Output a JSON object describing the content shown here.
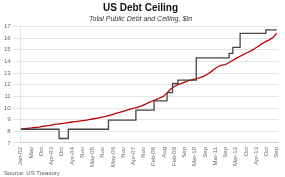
{
  "chart_data": {
    "type": "line",
    "title": "US Debt Ceiling",
    "subtitle": "Total Public Debt and Ceiling, $tn",
    "annotations": [
      "Source: US Treasury"
    ],
    "series": [
      {
        "color": "#444444",
        "x": [
          2002.0,
          2002.83,
          2002.83,
          2003.75,
          2003.75,
          2003.75,
          2004.17,
          2004.17,
          2004.42,
          2004.42,
          2006.0,
          2006.0,
          2007.25,
          2007.25,
          2008.08,
          2008.08,
          2008.67,
          2008.67,
          2008.92,
          2008.92,
          2009.17,
          2009.17,
          2010.0,
          2010.0,
          2011.5,
          2011.5,
          2011.67,
          2011.67,
          2012.0,
          2012.0,
          2013.17,
          2013.17,
          2013.67,
          2013.67
        ],
        "values": [
          8.18,
          8.18,
          8.18,
          8.18,
          7.384,
          7.384,
          7.384,
          8.18,
          8.18,
          8.18,
          8.18,
          8.965,
          8.965,
          9.815,
          9.815,
          10.615,
          10.615,
          11.315,
          11.315,
          12.104,
          12.104,
          12.394,
          12.394,
          14.294,
          14.294,
          14.694,
          14.694,
          15.194,
          15.194,
          16.394,
          16.394,
          16.699,
          16.699,
          16.699
        ]
      },
      {
        "color": "#bb0000",
        "x": [
          2002.0,
          2002.17,
          2002.33,
          2002.5,
          2002.67,
          2002.83,
          2003.0,
          2003.17,
          2003.33,
          2003.5,
          2003.67,
          2003.83,
          2004.0,
          2004.17,
          2004.33,
          2004.5,
          2004.67,
          2004.83,
          2005.0,
          2005.17,
          2005.33,
          2005.5,
          2005.67,
          2005.83,
          2006.0,
          2006.17,
          2006.33,
          2006.5,
          2006.67,
          2006.83,
          2007.0,
          2007.17,
          2007.33,
          2007.5,
          2007.67,
          2007.83,
          2008.0,
          2008.17,
          2008.33,
          2008.5,
          2008.67,
          2008.83,
          2009.0,
          2009.17,
          2009.33,
          2009.5,
          2009.67,
          2009.83,
          2010.0,
          2010.17,
          2010.33,
          2010.5,
          2010.67,
          2010.83,
          2011.0,
          2011.17,
          2011.33,
          2011.5,
          2011.67,
          2011.83,
          2012.0,
          2012.17,
          2012.33,
          2012.5,
          2012.67,
          2012.83,
          2013.0,
          2013.17,
          2013.33,
          2013.5,
          2013.67
        ],
        "values": [
          8.2,
          8.22,
          8.26,
          8.29,
          8.33,
          8.37,
          8.42,
          8.47,
          8.52,
          8.57,
          8.62,
          8.66,
          8.7,
          8.75,
          8.8,
          8.84,
          8.88,
          8.92,
          8.96,
          9.02,
          9.08,
          9.14,
          9.2,
          9.26,
          9.35,
          9.44,
          9.53,
          9.62,
          9.72,
          9.82,
          9.9,
          9.98,
          10.08,
          10.18,
          10.32,
          10.46,
          10.6,
          10.72,
          10.86,
          11.0,
          11.3,
          11.6,
          11.85,
          12.0,
          12.12,
          12.24,
          12.36,
          12.44,
          12.5,
          12.6,
          12.72,
          12.9,
          13.1,
          13.35,
          13.56,
          13.68,
          13.72,
          13.9,
          14.1,
          14.28,
          14.44,
          14.6,
          14.76,
          14.9,
          15.1,
          15.3,
          15.52,
          15.7,
          15.85,
          16.05,
          16.42
        ]
      }
    ],
    "xlim": [
      2002.0,
      2013.75
    ],
    "xticks": [
      {
        "value": 2002.0,
        "label": "Jan-02"
      },
      {
        "value": 2002.4668,
        "label": "May"
      },
      {
        "value": 2002.9336,
        "label": "Oct"
      },
      {
        "value": 2003.4004,
        "label": "Apr-03"
      },
      {
        "value": 2003.8672,
        "label": "Oct"
      },
      {
        "value": 2004.334,
        "label": "Apr-04"
      },
      {
        "value": 2004.8008,
        "label": "Nov"
      },
      {
        "value": 2005.2676,
        "label": "May-05"
      },
      {
        "value": 2005.7344,
        "label": "Nov"
      },
      {
        "value": 2006.2012,
        "label": "May-06"
      },
      {
        "value": 2006.668,
        "label": "Nov"
      },
      {
        "value": 2007.1348,
        "label": "Apr-07"
      },
      {
        "value": 2007.6016,
        "label": "Nov"
      },
      {
        "value": 2008.0684,
        "label": "Feb-08"
      },
      {
        "value": 2008.5352,
        "label": "Aug"
      },
      {
        "value": 2009.002,
        "label": "Feb-09"
      },
      {
        "value": 2009.4688,
        "label": "Sep"
      },
      {
        "value": 2009.9356,
        "label": "Mar-10"
      },
      {
        "value": 2010.4024,
        "label": "Sep"
      },
      {
        "value": 2010.8692,
        "label": "Mar-11"
      },
      {
        "value": 2011.336,
        "label": "Sep"
      },
      {
        "value": 2011.8028,
        "label": "Mar-12"
      },
      {
        "value": 2012.2696,
        "label": "Oct"
      },
      {
        "value": 2012.7364,
        "label": "Apr-13"
      },
      {
        "value": 2013.2032,
        "label": "Oct"
      },
      {
        "value": 2013.67,
        "label": "Sep"
      }
    ],
    "ylim": [
      7,
      17
    ],
    "yticks": [
      7,
      8,
      9,
      10,
      11,
      12,
      13,
      14,
      15,
      16,
      17
    ],
    "grid": "y"
  }
}
